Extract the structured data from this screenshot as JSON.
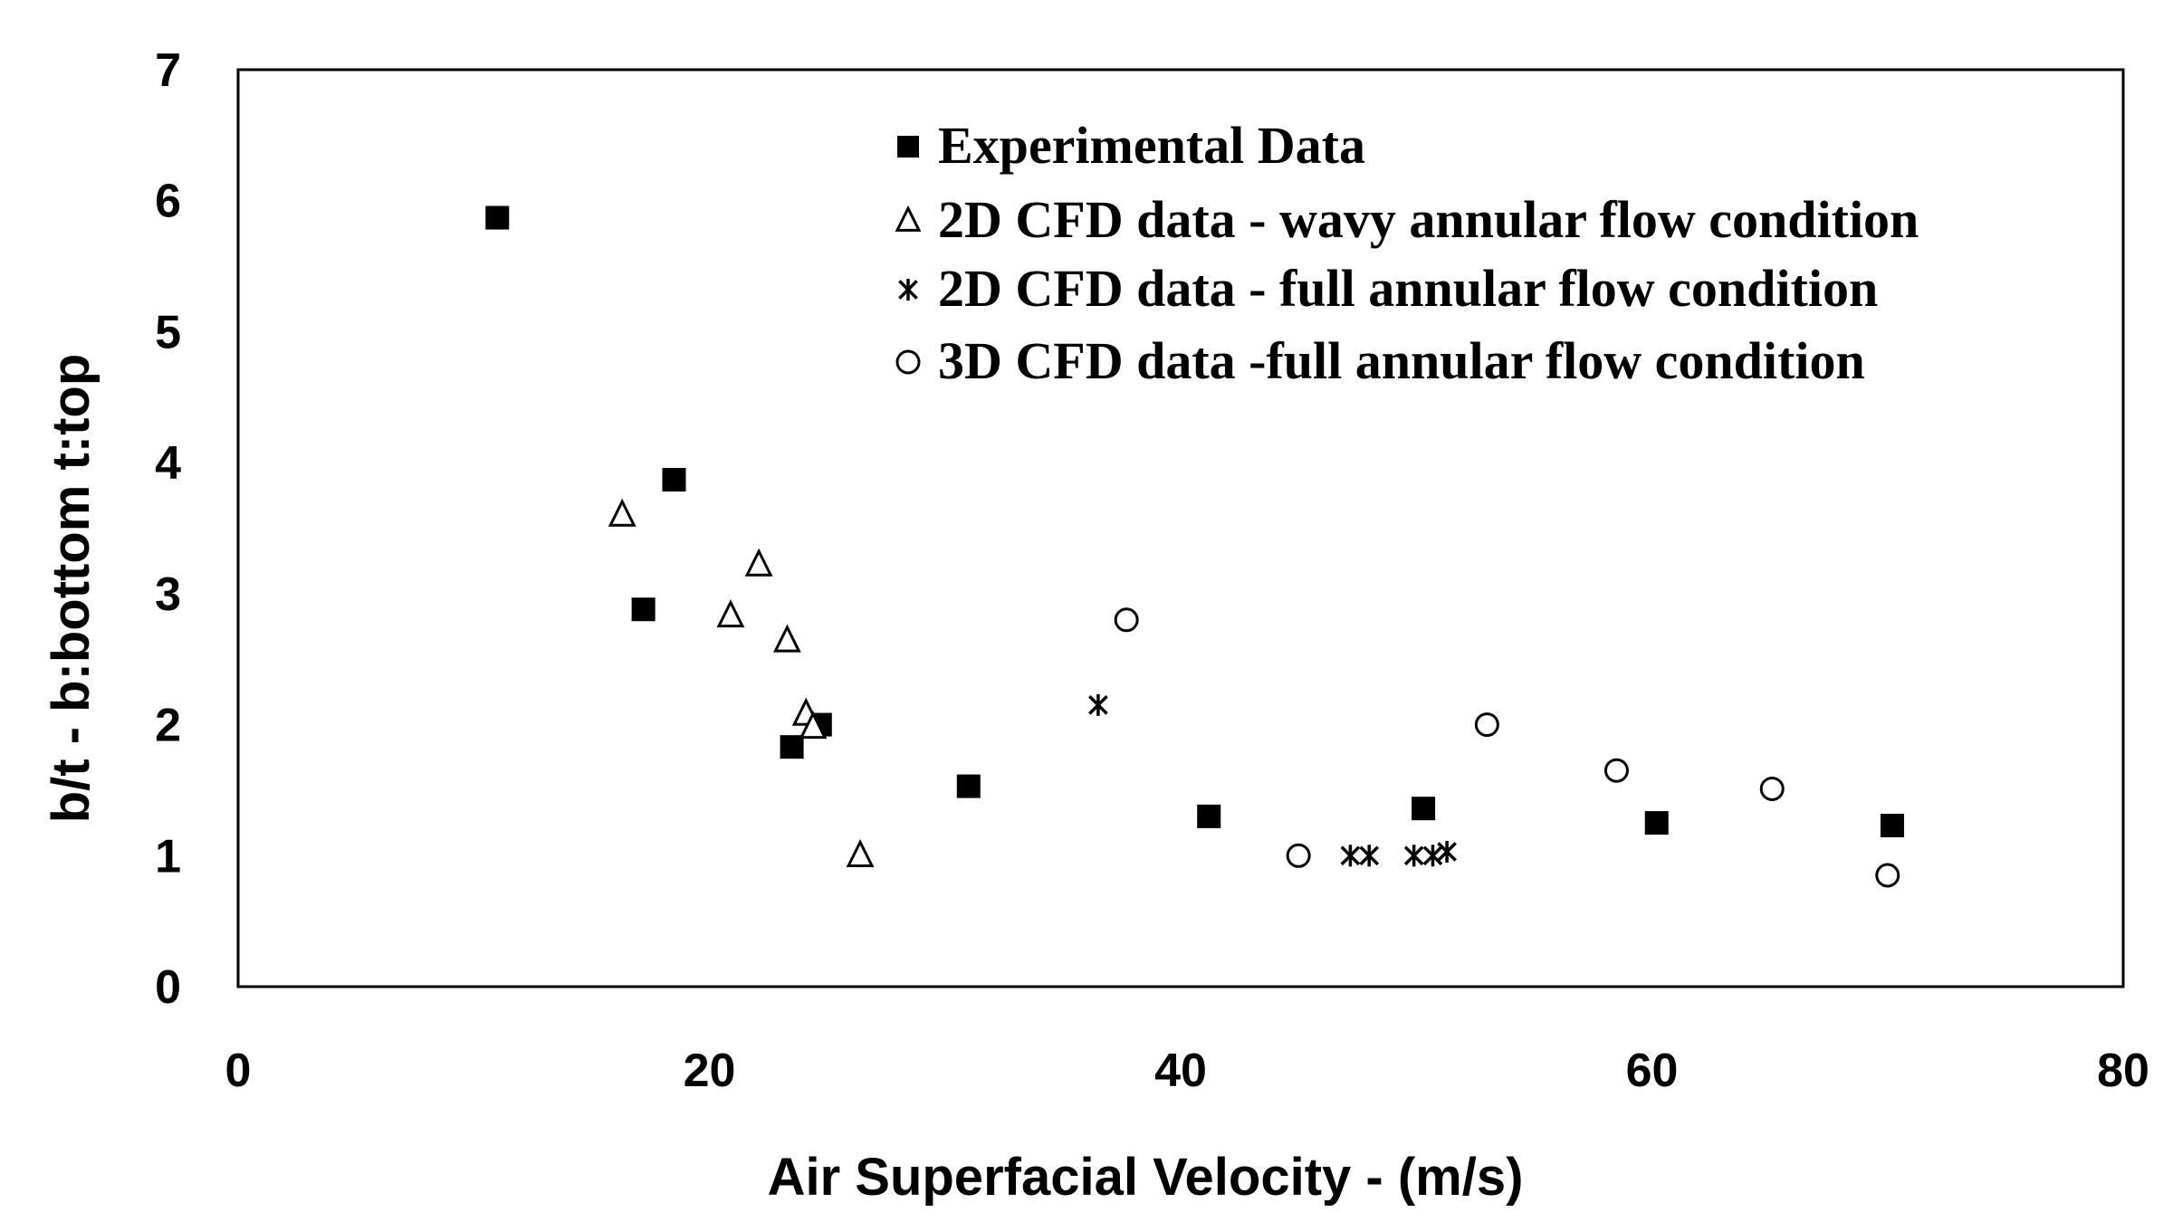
{
  "chart_data": {
    "type": "scatter",
    "title": "",
    "xlabel": "Air Superfacial Velocity - (m/s)",
    "ylabel": "b/t - b:bottom t:top",
    "xlim": [
      0,
      80
    ],
    "ylim": [
      0,
      7
    ],
    "xticks": [
      0,
      20,
      40,
      60,
      80
    ],
    "yticks": [
      0,
      1,
      2,
      3,
      4,
      5,
      6,
      7
    ],
    "grid": false,
    "legend_position": "top-right",
    "series": [
      {
        "name": "Experimental Data",
        "marker": "filled-square",
        "points": [
          [
            11,
            5.87
          ],
          [
            17.2,
            2.88
          ],
          [
            18.5,
            3.87
          ],
          [
            23.5,
            1.83
          ],
          [
            24.7,
            2.0
          ],
          [
            31,
            1.53
          ],
          [
            41.2,
            1.3
          ],
          [
            50.3,
            1.36
          ],
          [
            60.2,
            1.25
          ],
          [
            70.2,
            1.23
          ]
        ]
      },
      {
        "name": "2D CFD data - wavy annular flow condition",
        "marker": "open-triangle",
        "points": [
          [
            16.3,
            3.6
          ],
          [
            20.9,
            2.83
          ],
          [
            22.1,
            3.22
          ],
          [
            23.3,
            2.64
          ],
          [
            24.1,
            2.08
          ],
          [
            24.4,
            1.98
          ],
          [
            26.4,
            1.0
          ]
        ]
      },
      {
        "name": "2D CFD data - full annular flow condition",
        "marker": "asterisk",
        "points": [
          [
            36.5,
            2.15
          ],
          [
            47.2,
            1.0
          ],
          [
            48.0,
            1.0
          ],
          [
            49.9,
            1.0
          ],
          [
            50.7,
            1.0
          ],
          [
            51.3,
            1.03
          ]
        ]
      },
      {
        "name": "3D CFD data -full annular flow condition",
        "marker": "open-circle",
        "points": [
          [
            37.7,
            2.8
          ],
          [
            45.0,
            1.0
          ],
          [
            53.0,
            2.0
          ],
          [
            58.5,
            1.65
          ],
          [
            65.1,
            1.51
          ],
          [
            70.0,
            0.85
          ]
        ]
      }
    ]
  }
}
